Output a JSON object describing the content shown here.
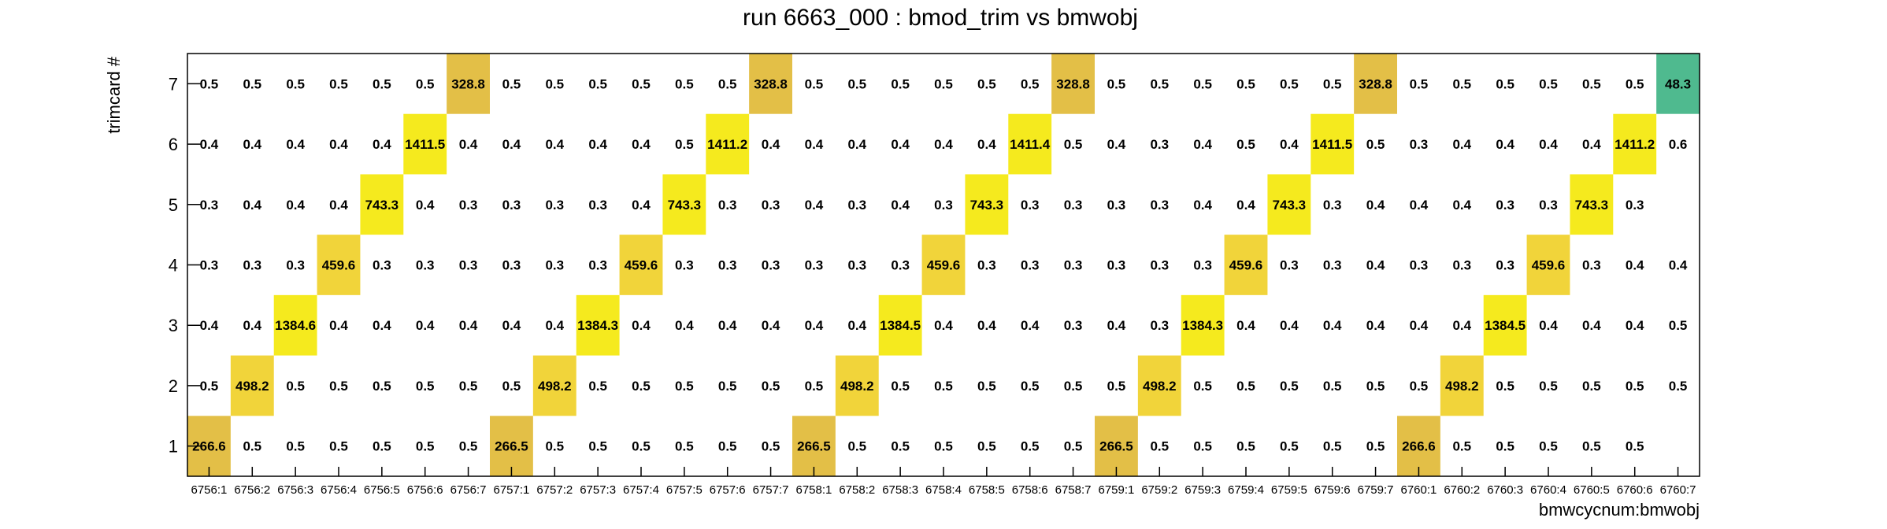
{
  "chart_data": {
    "type": "heatmap",
    "title": "run 6663_000 : bmod_trim vs bmwobj",
    "xlabel": "bmwcycnum:bmwobj",
    "ylabel": "trimcard #",
    "x_categories": [
      "6756:1",
      "6756:2",
      "6756:3",
      "6756:4",
      "6756:5",
      "6756:6",
      "6756:7",
      "6757:1",
      "6757:2",
      "6757:3",
      "6757:4",
      "6757:5",
      "6757:6",
      "6757:7",
      "6758:1",
      "6758:2",
      "6758:3",
      "6758:4",
      "6758:5",
      "6758:6",
      "6758:7",
      "6759:1",
      "6759:2",
      "6759:3",
      "6759:4",
      "6759:5",
      "6759:6",
      "6759:7",
      "6760:1",
      "6760:2",
      "6760:3",
      "6760:4",
      "6760:5",
      "6760:6",
      "6760:7"
    ],
    "y_categories": [
      "1",
      "2",
      "3",
      "4",
      "5",
      "6",
      "7"
    ],
    "palette": {
      "yellow": "#f5ea1e",
      "light_gold": "#f1d43a",
      "gold": "#e3bf47",
      "green": "#4fba8f"
    },
    "rows": [
      {
        "y": "7",
        "values": [
          "0.5",
          "0.5",
          "0.5",
          "0.5",
          "0.5",
          "0.5",
          "328.8",
          "0.5",
          "0.5",
          "0.5",
          "0.5",
          "0.5",
          "0.5",
          "328.8",
          "0.5",
          "0.5",
          "0.5",
          "0.5",
          "0.5",
          "0.5",
          "328.8",
          "0.5",
          "0.5",
          "0.5",
          "0.5",
          "0.5",
          "0.5",
          "328.8",
          "0.5",
          "0.5",
          "0.5",
          "0.5",
          "0.5",
          "0.5",
          "48.3"
        ]
      },
      {
        "y": "6",
        "values": [
          "0.4",
          "0.4",
          "0.4",
          "0.4",
          "0.4",
          "1411.5",
          "0.4",
          "0.4",
          "0.4",
          "0.4",
          "0.4",
          "0.5",
          "1411.2",
          "0.4",
          "0.4",
          "0.4",
          "0.4",
          "0.4",
          "0.4",
          "1411.4",
          "0.5",
          "0.4",
          "0.3",
          "0.4",
          "0.5",
          "0.4",
          "1411.5",
          "0.5",
          "0.3",
          "0.4",
          "0.4",
          "0.4",
          "0.4",
          "1411.2",
          "0.6"
        ]
      },
      {
        "y": "5",
        "values": [
          "0.3",
          "0.4",
          "0.4",
          "0.4",
          "743.3",
          "0.4",
          "0.3",
          "0.3",
          "0.3",
          "0.3",
          "0.4",
          "743.3",
          "0.3",
          "0.3",
          "0.4",
          "0.3",
          "0.4",
          "0.3",
          "743.3",
          "0.3",
          "0.3",
          "0.3",
          "0.3",
          "0.4",
          "0.4",
          "743.3",
          "0.3",
          "0.4",
          "0.4",
          "0.4",
          "0.3",
          "0.3",
          "743.3",
          "0.3",
          ""
        ]
      },
      {
        "y": "4",
        "values": [
          "0.3",
          "0.3",
          "0.3",
          "459.6",
          "0.3",
          "0.3",
          "0.3",
          "0.3",
          "0.3",
          "0.3",
          "459.6",
          "0.3",
          "0.3",
          "0.3",
          "0.3",
          "0.3",
          "0.3",
          "459.6",
          "0.3",
          "0.3",
          "0.3",
          "0.3",
          "0.3",
          "0.3",
          "459.6",
          "0.3",
          "0.3",
          "0.4",
          "0.3",
          "0.3",
          "0.3",
          "459.6",
          "0.3",
          "0.4",
          "0.4"
        ]
      },
      {
        "y": "3",
        "values": [
          "0.4",
          "0.4",
          "1384.6",
          "0.4",
          "0.4",
          "0.4",
          "0.4",
          "0.4",
          "0.4",
          "1384.3",
          "0.4",
          "0.4",
          "0.4",
          "0.4",
          "0.4",
          "0.4",
          "1384.5",
          "0.4",
          "0.4",
          "0.4",
          "0.3",
          "0.4",
          "0.3",
          "1384.3",
          "0.4",
          "0.4",
          "0.4",
          "0.4",
          "0.4",
          "0.4",
          "1384.5",
          "0.4",
          "0.4",
          "0.4",
          "0.5"
        ]
      },
      {
        "y": "2",
        "values": [
          "0.5",
          "498.2",
          "0.5",
          "0.5",
          "0.5",
          "0.5",
          "0.5",
          "0.5",
          "498.2",
          "0.5",
          "0.5",
          "0.5",
          "0.5",
          "0.5",
          "0.5",
          "498.2",
          "0.5",
          "0.5",
          "0.5",
          "0.5",
          "0.5",
          "0.5",
          "498.2",
          "0.5",
          "0.5",
          "0.5",
          "0.5",
          "0.5",
          "0.5",
          "498.2",
          "0.5",
          "0.5",
          "0.5",
          "0.5",
          "0.5"
        ]
      },
      {
        "y": "1",
        "values": [
          "266.6",
          "0.5",
          "0.5",
          "0.5",
          "0.5",
          "0.5",
          "0.5",
          "266.5",
          "0.5",
          "0.5",
          "0.5",
          "0.5",
          "0.5",
          "0.5",
          "266.5",
          "0.5",
          "0.5",
          "0.5",
          "0.5",
          "0.5",
          "0.5",
          "266.5",
          "0.5",
          "0.5",
          "0.5",
          "0.5",
          "0.5",
          "0.5",
          "266.6",
          "0.5",
          "0.5",
          "0.5",
          "0.5",
          "0.5",
          ""
        ]
      }
    ]
  }
}
